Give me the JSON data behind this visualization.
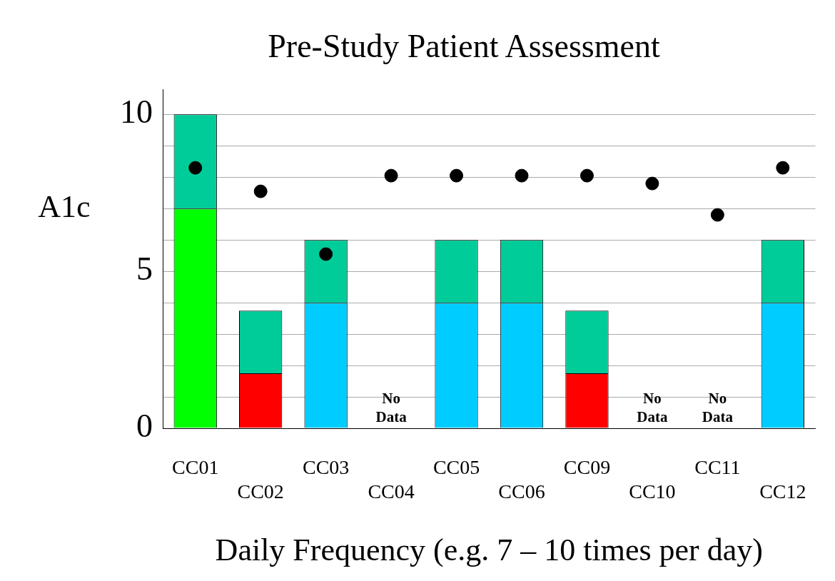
{
  "chart_data": {
    "type": "bar",
    "title": "Pre-Study Patient Assessment",
    "xlabel": "Daily Frequency (e.g. 7 – 10 times per day)",
    "ylabel": "A1c",
    "categories": [
      "CC01",
      "CC02",
      "CC03",
      "CC04",
      "CC05",
      "CC06",
      "CC09",
      "CC10",
      "CC11",
      "CC12"
    ],
    "stacked": true,
    "series": [
      {
        "values": [
          7,
          1.75,
          4,
          null,
          4,
          4,
          1.75,
          null,
          null,
          4
        ],
        "colors": [
          "#00ff00",
          "#ff0000",
          "#00ccff",
          "#00ccff",
          "#00ccff",
          "#00ccff",
          "#ff0000",
          "#00ccff",
          "#00ccff",
          "#00ccff"
        ]
      },
      {
        "values": [
          3,
          2,
          2,
          null,
          2,
          2,
          2,
          null,
          null,
          2
        ],
        "color": "#00cc99"
      },
      {
        "type": "scatter",
        "color": "#000000",
        "values": [
          8.3,
          7.55,
          5.55,
          8.05,
          8.05,
          8.05,
          8.05,
          7.8,
          6.8,
          8.3
        ]
      }
    ],
    "ylim": [
      0,
      10.8
    ],
    "yticks": [
      0,
      {
        "value": 1,
        "label": null
      },
      {
        "value": 2,
        "label": null
      },
      {
        "value": 3,
        "label": null
      },
      {
        "value": 4,
        "label": null
      },
      5,
      {
        "value": 6,
        "label": null
      },
      {
        "value": 7,
        "label": null
      },
      {
        "value": 8,
        "label": null
      },
      {
        "value": 9,
        "label": null
      },
      10
    ],
    "grid": "y",
    "legend": false,
    "marker": "circle",
    "annotations": [
      "No Data",
      "No Data",
      "No Data"
    ]
  }
}
